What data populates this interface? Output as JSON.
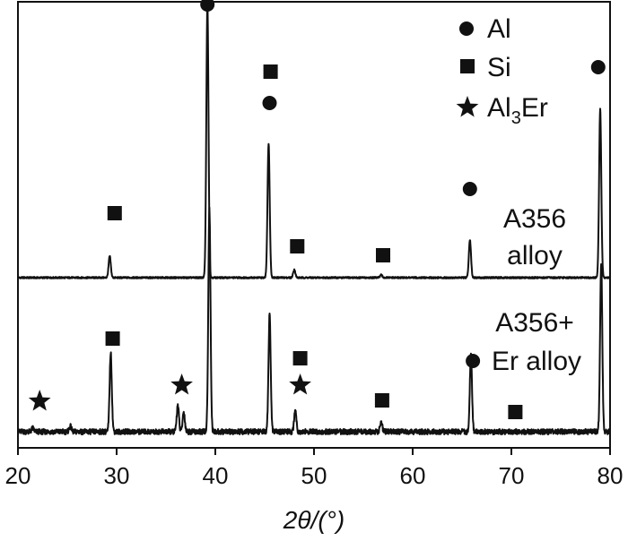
{
  "chart_data": {
    "type": "line",
    "xlabel": "2θ/(°)",
    "xlim": [
      20,
      80
    ],
    "xticks": [
      20,
      30,
      40,
      50,
      60,
      70,
      80
    ],
    "yticks_shown": false,
    "grid": false,
    "legend": {
      "placement": "top-right",
      "entries": [
        {
          "marker": "circle",
          "label": "Al"
        },
        {
          "marker": "square",
          "label": "Si"
        },
        {
          "marker": "star",
          "label_main": "Al",
          "label_sub": "3",
          "label_tail": "Er"
        }
      ]
    },
    "annotations": [
      {
        "lines": [
          "A356",
          "alloy"
        ],
        "target_series": "A356 alloy"
      },
      {
        "lines": [
          "A356+",
          "Er alloy"
        ],
        "target_series": "A356+Er alloy"
      }
    ],
    "series": [
      {
        "name": "A356 alloy",
        "baseline": 0.0,
        "peaks": [
          {
            "x": 29.3,
            "intensity": 0.24,
            "phase": "Si"
          },
          {
            "x": 39.2,
            "intensity": 3.05,
            "phase": "Al"
          },
          {
            "x": 45.4,
            "intensity": 1.5,
            "phase": "Al+Si"
          },
          {
            "x": 48.0,
            "intensity": 0.09,
            "phase": "Si"
          },
          {
            "x": 56.8,
            "intensity": 0.03,
            "phase": "Si"
          },
          {
            "x": 65.8,
            "intensity": 0.42,
            "phase": "Al"
          },
          {
            "x": 79.0,
            "intensity": 1.88,
            "phase": "Al"
          }
        ],
        "markers": [
          {
            "x": 29.8,
            "y": 0.72,
            "phase": "Si"
          },
          {
            "x": 39.2,
            "y": 3.05,
            "phase": "Al"
          },
          {
            "x": 45.5,
            "y": 1.95,
            "phase": "Al"
          },
          {
            "x": 45.6,
            "y": 2.3,
            "phase": "Si"
          },
          {
            "x": 48.3,
            "y": 0.35,
            "phase": "Si"
          },
          {
            "x": 57.0,
            "y": 0.25,
            "phase": "Si"
          },
          {
            "x": 65.8,
            "y": 0.99,
            "phase": "Al"
          },
          {
            "x": 78.8,
            "y": 2.35,
            "phase": "Al"
          }
        ]
      },
      {
        "name": "A356+Er alloy",
        "baseline": -1.72,
        "peaks": [
          {
            "x": 21.5,
            "intensity": 0.04,
            "phase": "Al3Er"
          },
          {
            "x": 25.3,
            "intensity": 0.06,
            "phase": ""
          },
          {
            "x": 29.4,
            "intensity": 0.88,
            "phase": "Si"
          },
          {
            "x": 36.2,
            "intensity": 0.3,
            "phase": "Al3Er"
          },
          {
            "x": 36.8,
            "intensity": 0.22,
            "phase": "Al3Er"
          },
          {
            "x": 39.4,
            "intensity": 2.5,
            "phase": "Al"
          },
          {
            "x": 45.5,
            "intensity": 1.3,
            "phase": "Al+Si"
          },
          {
            "x": 48.1,
            "intensity": 0.25,
            "phase": "Si"
          },
          {
            "x": 56.8,
            "intensity": 0.12,
            "phase": "Si"
          },
          {
            "x": 65.9,
            "intensity": 0.85,
            "phase": "Al"
          },
          {
            "x": 79.1,
            "intensity": 1.9,
            "phase": "Al"
          }
        ],
        "markers": [
          {
            "x": 22.2,
            "y": -1.38,
            "phase": "Al3Er"
          },
          {
            "x": 29.6,
            "y": -0.68,
            "phase": "Si"
          },
          {
            "x": 36.6,
            "y": -1.2,
            "phase": "Al3Er"
          },
          {
            "x": 48.6,
            "y": -0.9,
            "phase": "Si"
          },
          {
            "x": 48.6,
            "y": -1.2,
            "phase": "Al3Er"
          },
          {
            "x": 56.9,
            "y": -1.37,
            "phase": "Si"
          },
          {
            "x": 66.1,
            "y": -0.93,
            "phase": "Al"
          },
          {
            "x": 70.4,
            "y": -1.5,
            "phase": "Si"
          }
        ]
      }
    ]
  }
}
